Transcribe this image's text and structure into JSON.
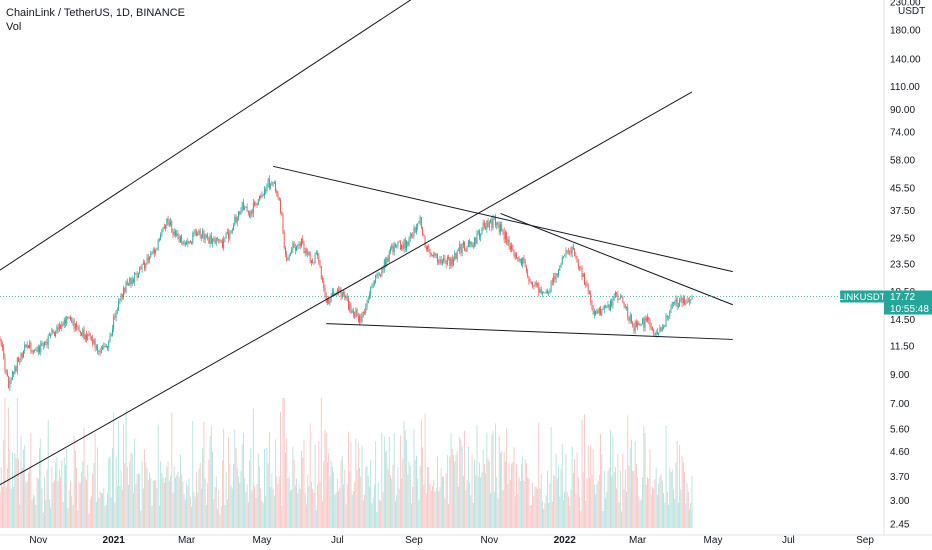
{
  "header": {
    "title": "ChainLink / TetherUS, 1D, BINANCE",
    "volume_label": "Vol"
  },
  "axis": {
    "currency": "USDT"
  },
  "price_badge": {
    "symbol": "LINKUSDT",
    "price": "17.72",
    "countdown": "10:55:48"
  },
  "colors": {
    "up": "#26a69a",
    "down": "#ef5350",
    "badge": "#26a69a",
    "trendline": "#131722",
    "price_line": "#26a69a"
  },
  "chart_data": {
    "type": "candlestick",
    "title": "ChainLink / TetherUS, 1D, BINANCE",
    "y_scale": "log",
    "y_ticks": [
      "230.00",
      "180.00",
      "140.00",
      "110.00",
      "90.00",
      "74.00",
      "58.00",
      "45.50",
      "37.50",
      "29.50",
      "23.50",
      "18.50",
      "14.50",
      "11.50",
      "9.00",
      "7.00",
      "5.60",
      "4.60",
      "3.70",
      "3.00",
      "2.45"
    ],
    "x_ticks": [
      {
        "label": "Nov",
        "bold": false
      },
      {
        "label": "2021",
        "bold": true
      },
      {
        "label": "Mar",
        "bold": false
      },
      {
        "label": "May",
        "bold": false
      },
      {
        "label": "Jul",
        "bold": false
      },
      {
        "label": "Sep",
        "bold": false
      },
      {
        "label": "Nov",
        "bold": false
      },
      {
        "label": "2022",
        "bold": true
      },
      {
        "label": "Mar",
        "bold": false
      },
      {
        "label": "May",
        "bold": false
      },
      {
        "label": "Jul",
        "bold": false
      },
      {
        "label": "Sep",
        "bold": false
      }
    ],
    "date_range": [
      "2020-10-01",
      "2022-04-14"
    ],
    "last_price": 17.72,
    "price_path": [
      [
        "2020-10-01",
        12.5
      ],
      [
        "2020-10-08",
        8.0
      ],
      [
        "2020-10-15",
        10.0
      ],
      [
        "2020-10-22",
        11.5
      ],
      [
        "2020-11-01",
        11.0
      ],
      [
        "2020-11-10",
        12.5
      ],
      [
        "2020-11-20",
        14.0
      ],
      [
        "2020-11-25",
        14.5
      ],
      [
        "2020-12-05",
        13.0
      ],
      [
        "2020-12-15",
        12.0
      ],
      [
        "2020-12-22",
        11.0
      ],
      [
        "2020-12-28",
        12.0
      ],
      [
        "2021-01-05",
        17.0
      ],
      [
        "2021-01-12",
        20.0
      ],
      [
        "2021-01-18",
        21.0
      ],
      [
        "2021-01-28",
        24.0
      ],
      [
        "2021-02-05",
        27.0
      ],
      [
        "2021-02-13",
        35.0
      ],
      [
        "2021-02-22",
        29.0
      ],
      [
        "2021-03-01",
        28.0
      ],
      [
        "2021-03-10",
        31.0
      ],
      [
        "2021-03-20",
        29.0
      ],
      [
        "2021-03-30",
        28.0
      ],
      [
        "2021-04-05",
        31.0
      ],
      [
        "2021-04-15",
        40.0
      ],
      [
        "2021-04-20",
        36.0
      ],
      [
        "2021-04-28",
        41.0
      ],
      [
        "2021-05-06",
        48.0
      ],
      [
        "2021-05-12",
        46.0
      ],
      [
        "2021-05-17",
        36.0
      ],
      [
        "2021-05-20",
        25.0
      ],
      [
        "2021-05-25",
        27.0
      ],
      [
        "2021-06-02",
        28.0
      ],
      [
        "2021-06-10",
        24.0
      ],
      [
        "2021-06-15",
        25.0
      ],
      [
        "2021-06-22",
        17.0
      ],
      [
        "2021-07-01",
        19.0
      ],
      [
        "2021-07-10",
        16.5
      ],
      [
        "2021-07-20",
        14.5
      ],
      [
        "2021-07-28",
        19.0
      ],
      [
        "2021-08-05",
        22.0
      ],
      [
        "2021-08-15",
        27.0
      ],
      [
        "2021-08-25",
        28.0
      ],
      [
        "2021-09-01",
        31.0
      ],
      [
        "2021-09-06",
        35.0
      ],
      [
        "2021-09-10",
        27.0
      ],
      [
        "2021-09-22",
        24.0
      ],
      [
        "2021-10-01",
        24.0
      ],
      [
        "2021-10-08",
        27.0
      ],
      [
        "2021-10-18",
        28.0
      ],
      [
        "2021-10-28",
        33.0
      ],
      [
        "2021-11-05",
        34.0
      ],
      [
        "2021-11-12",
        31.0
      ],
      [
        "2021-11-20",
        26.0
      ],
      [
        "2021-11-28",
        24.0
      ],
      [
        "2021-12-04",
        20.0
      ],
      [
        "2021-12-10",
        19.0
      ],
      [
        "2021-12-20",
        19.0
      ],
      [
        "2021-12-28",
        23.0
      ],
      [
        "2022-01-05",
        27.0
      ],
      [
        "2022-01-10",
        25.0
      ],
      [
        "2022-01-18",
        20.0
      ],
      [
        "2022-01-25",
        15.0
      ],
      [
        "2022-02-05",
        16.0
      ],
      [
        "2022-02-12",
        18.0
      ],
      [
        "2022-02-20",
        16.0
      ],
      [
        "2022-02-25",
        13.5
      ],
      [
        "2022-03-05",
        14.0
      ],
      [
        "2022-03-10",
        14.5
      ],
      [
        "2022-03-15",
        12.5
      ],
      [
        "2022-03-22",
        14.0
      ],
      [
        "2022-03-30",
        16.5
      ],
      [
        "2022-04-06",
        17.0
      ],
      [
        "2022-04-14",
        17.72
      ]
    ],
    "trendlines": [
      {
        "name": "channel-upper",
        "p1": [
          "2020-10-01",
          22.3
        ],
        "p2": [
          "2022-04-14",
          1170
        ]
      },
      {
        "name": "channel-lower",
        "p1": [
          "2020-10-01",
          3.45
        ],
        "p2": [
          "2022-04-14",
          105
        ]
      },
      {
        "name": "resistance-from-may-high",
        "p1": [
          "2021-05-10",
          55
        ],
        "p2": [
          "2022-05-17",
          22
        ]
      },
      {
        "name": "resistance-second",
        "p1": [
          "2021-11-10",
          36.5
        ],
        "p2": [
          "2022-05-17",
          16.5
        ]
      },
      {
        "name": "support",
        "p1": [
          "2021-06-22",
          14.0
        ],
        "p2": [
          "2022-05-17",
          12.2
        ]
      }
    ]
  }
}
